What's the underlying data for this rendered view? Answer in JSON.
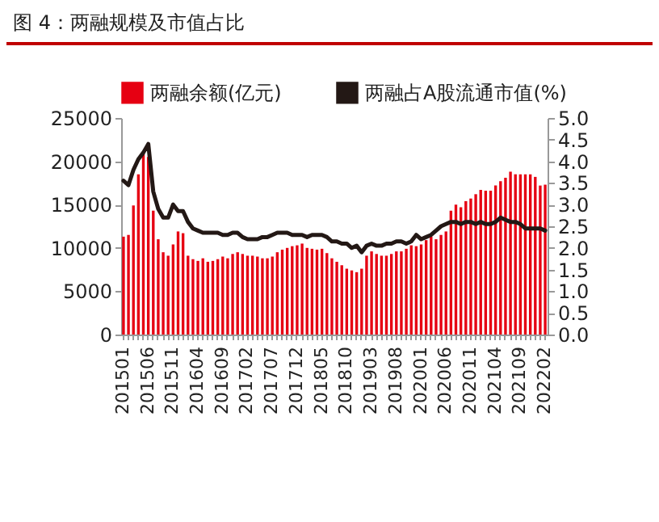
{
  "chart_data": {
    "type": "bar",
    "title": "图 4：两融规模及市值占比",
    "categories": [
      "201501",
      null,
      null,
      null,
      null,
      "201506",
      null,
      null,
      null,
      null,
      "201511",
      null,
      null,
      null,
      null,
      "201604",
      null,
      null,
      null,
      null,
      "201609",
      null,
      null,
      null,
      null,
      "201702",
      null,
      null,
      null,
      null,
      "201707",
      null,
      null,
      null,
      null,
      "201712",
      null,
      null,
      null,
      null,
      "201805",
      null,
      null,
      null,
      null,
      "201810",
      null,
      null,
      null,
      null,
      "201903",
      null,
      null,
      null,
      null,
      "201908",
      null,
      null,
      null,
      null,
      "202001",
      null,
      null,
      null,
      null,
      "202006",
      null,
      null,
      null,
      null,
      "202011",
      null,
      null,
      null,
      null,
      "202104",
      null,
      null,
      null,
      null,
      "202109",
      null,
      null,
      null,
      null,
      "202202"
    ],
    "series": [
      {
        "name": "两融余额(亿元)",
        "color": "#e60012",
        "values": [
          11300,
          11500,
          14900,
          18500,
          20800,
          20500,
          14300,
          11000,
          9500,
          9100,
          10400,
          11900,
          11700,
          9100,
          8700,
          8500,
          8800,
          8400,
          8500,
          8700,
          9000,
          8800,
          9300,
          9500,
          9300,
          9100,
          9100,
          9000,
          8800,
          8800,
          9000,
          9500,
          9800,
          10000,
          10200,
          10300,
          10500,
          10000,
          9900,
          9800,
          9900,
          9400,
          8800,
          8400,
          8000,
          7600,
          7400,
          7200,
          7600,
          9100,
          9600,
          9300,
          9100,
          9100,
          9300,
          9600,
          9600,
          9900,
          10300,
          10200,
          10400,
          10900,
          11300,
          11000,
          11500,
          11900,
          14300,
          15000,
          14700,
          15400,
          15700,
          16200,
          16700,
          16600,
          16600,
          17200,
          17700,
          18100,
          18800,
          18500,
          18500,
          18500,
          18500,
          18200,
          17200,
          17300
        ]
      },
      {
        "name": "两融占A股流通市值(%)",
        "color": "#231815",
        "type": "line",
        "axis": "y2",
        "values": [
          3.55,
          3.45,
          3.8,
          4.05,
          4.2,
          4.4,
          3.3,
          2.9,
          2.7,
          2.7,
          3.0,
          2.85,
          2.85,
          2.6,
          2.45,
          2.4,
          2.35,
          2.35,
          2.35,
          2.35,
          2.3,
          2.3,
          2.35,
          2.35,
          2.25,
          2.2,
          2.2,
          2.2,
          2.25,
          2.25,
          2.3,
          2.35,
          2.35,
          2.35,
          2.3,
          2.3,
          2.3,
          2.25,
          2.3,
          2.3,
          2.3,
          2.25,
          2.15,
          2.15,
          2.1,
          2.1,
          2.0,
          2.05,
          1.9,
          2.05,
          2.1,
          2.05,
          2.05,
          2.1,
          2.1,
          2.15,
          2.15,
          2.1,
          2.15,
          2.3,
          2.2,
          2.25,
          2.3,
          2.4,
          2.5,
          2.55,
          2.6,
          2.6,
          2.55,
          2.6,
          2.6,
          2.55,
          2.6,
          2.55,
          2.55,
          2.6,
          2.7,
          2.65,
          2.6,
          2.6,
          2.55,
          2.45,
          2.45,
          2.45,
          2.45,
          2.4
        ]
      }
    ],
    "ylim": [
      0,
      25000
    ],
    "yticks": [
      0,
      5000,
      10000,
      15000,
      20000,
      25000
    ],
    "y2lim": [
      0,
      5
    ],
    "y2ticks": [
      {
        "value": 0,
        "label": "0.0"
      },
      {
        "value": 0.5,
        "label": "0.5"
      },
      {
        "value": 1,
        "label": "1.0"
      },
      {
        "value": 1.5,
        "label": "1.5"
      },
      {
        "value": 2,
        "label": "2.0"
      },
      {
        "value": 2.5,
        "label": "2.5"
      },
      {
        "value": 3,
        "label": "3.0"
      },
      {
        "value": 3.5,
        "label": "3.5"
      },
      {
        "value": 4,
        "label": "4.0"
      },
      {
        "value": 4.5,
        "label": "4.5"
      },
      {
        "value": 5,
        "label": "5.0"
      }
    ],
    "grid": false,
    "legend": "top"
  }
}
